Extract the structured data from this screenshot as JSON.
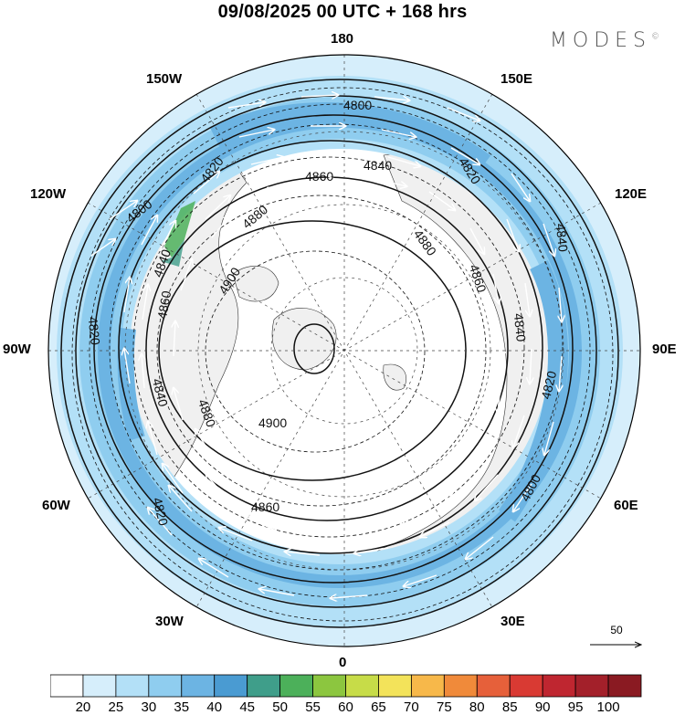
{
  "title": "09/08/2025  00 UTC  + 168 hrs",
  "logo": "MODES",
  "logo_mark": "©",
  "longitude_labels": {
    "top": "180",
    "bottom": "0",
    "left": "90W",
    "right": "90E",
    "upper_left_1": "150W",
    "upper_left_2": "120W",
    "upper_right_1": "150E",
    "upper_right_2": "120E",
    "lower_left_1": "60W",
    "lower_left_2": "30W",
    "lower_right_1": "60E",
    "lower_right_2": "30E"
  },
  "contour_labels": [
    "4800",
    "4820",
    "4840",
    "4860",
    "4880",
    "4900"
  ],
  "wind_scale": {
    "levels": [
      "20",
      "25",
      "30",
      "35",
      "40",
      "45",
      "50",
      "55",
      "60",
      "65",
      "70",
      "75",
      "80",
      "85",
      "90",
      "95",
      "100"
    ],
    "colors": [
      "#ffffff",
      "#d6eefb",
      "#b3e0f7",
      "#8fcdef",
      "#6cb4e3",
      "#4a9bd2",
      "#3f9e8a",
      "#4cb05a",
      "#8cc63f",
      "#c7dc48",
      "#f3e35a",
      "#f7b84a",
      "#f08a3a",
      "#e6603a",
      "#d93a33",
      "#bf2630",
      "#a3202a",
      "#8a1a22"
    ],
    "vector_reference": "50"
  },
  "map_colors": {
    "land": "#f0f0f0",
    "coast": "#333333",
    "contour": "#111111",
    "grid": "#444444"
  }
}
